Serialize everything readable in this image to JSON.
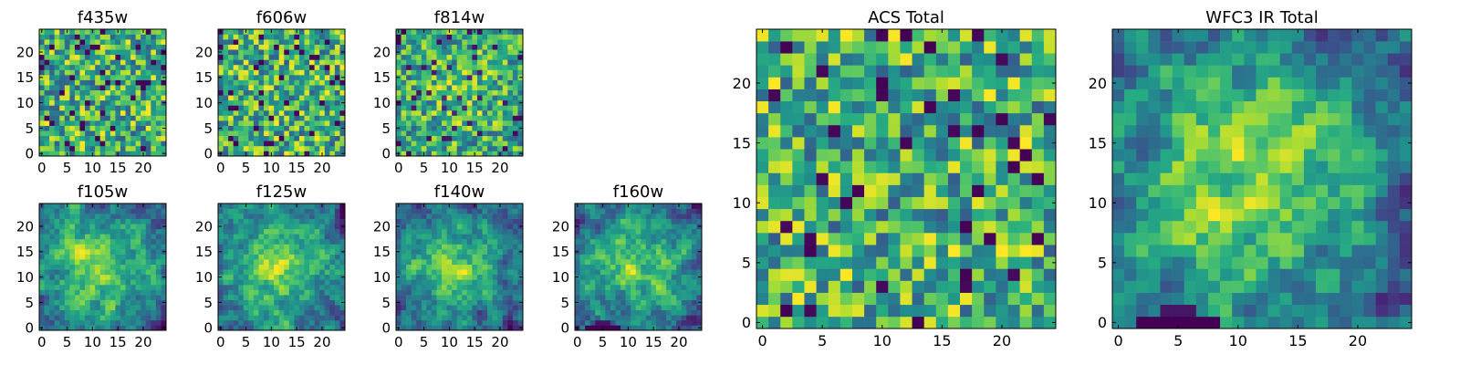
{
  "chart_data": [
    {
      "type": "heatmap",
      "title": "f435w",
      "grid": [
        25,
        25
      ],
      "xlim": [
        -0.5,
        24.5
      ],
      "ylim": [
        -0.5,
        24.5
      ],
      "xticks": [
        0,
        5,
        10,
        15,
        20
      ],
      "yticks": [
        0,
        5,
        10,
        15,
        20
      ],
      "colormap": "viridis",
      "pattern": "noise",
      "seed": 11
    },
    {
      "type": "heatmap",
      "title": "f606w",
      "grid": [
        25,
        25
      ],
      "xlim": [
        -0.5,
        24.5
      ],
      "ylim": [
        -0.5,
        24.5
      ],
      "xticks": [
        0,
        5,
        10,
        15,
        20
      ],
      "yticks": [
        0,
        5,
        10,
        15,
        20
      ],
      "colormap": "viridis",
      "pattern": "noise",
      "seed": 23
    },
    {
      "type": "heatmap",
      "title": "f814w",
      "grid": [
        25,
        25
      ],
      "xlim": [
        -0.5,
        24.5
      ],
      "ylim": [
        -0.5,
        24.5
      ],
      "xticks": [
        0,
        5,
        10,
        15,
        20
      ],
      "yticks": [
        0,
        5,
        10,
        15,
        20
      ],
      "colormap": "viridis",
      "pattern": "noise-bright-center",
      "seed": 37
    },
    {
      "type": "heatmap",
      "title": "f105w",
      "grid": [
        25,
        25
      ],
      "xlim": [
        -0.5,
        24.5
      ],
      "ylim": [
        -0.5,
        24.5
      ],
      "xticks": [
        0,
        5,
        10,
        15,
        20
      ],
      "yticks": [
        0,
        5,
        10,
        15,
        20
      ],
      "colormap": "viridis",
      "pattern": "smooth-blob",
      "seed": 41
    },
    {
      "type": "heatmap",
      "title": "f125w",
      "grid": [
        25,
        25
      ],
      "xlim": [
        -0.5,
        24.5
      ],
      "ylim": [
        -0.5,
        24.5
      ],
      "xticks": [
        0,
        5,
        10,
        15,
        20
      ],
      "yticks": [
        0,
        5,
        10,
        15,
        20
      ],
      "colormap": "viridis",
      "pattern": "smooth-blob",
      "seed": 53
    },
    {
      "type": "heatmap",
      "title": "f140w",
      "grid": [
        25,
        25
      ],
      "xlim": [
        -0.5,
        24.5
      ],
      "ylim": [
        -0.5,
        24.5
      ],
      "xticks": [
        0,
        5,
        10,
        15,
        20
      ],
      "yticks": [
        0,
        5,
        10,
        15,
        20
      ],
      "colormap": "viridis",
      "pattern": "smooth-blob",
      "seed": 67
    },
    {
      "type": "heatmap",
      "title": "f160w",
      "grid": [
        25,
        25
      ],
      "xlim": [
        -0.5,
        24.5
      ],
      "ylim": [
        -0.5,
        24.5
      ],
      "xticks": [
        0,
        5,
        10,
        15,
        20
      ],
      "yticks": [
        0,
        5,
        10,
        15,
        20
      ],
      "colormap": "viridis",
      "pattern": "smooth-blob-dark-bottom",
      "seed": 79
    },
    {
      "type": "heatmap",
      "title": "ACS Total",
      "grid": [
        25,
        25
      ],
      "xlim": [
        -0.5,
        24.5
      ],
      "ylim": [
        -0.5,
        24.5
      ],
      "xticks": [
        0,
        5,
        10,
        15,
        20
      ],
      "yticks": [
        0,
        5,
        10,
        15,
        20
      ],
      "colormap": "viridis",
      "pattern": "noise-bright",
      "seed": 97
    },
    {
      "type": "heatmap",
      "title": "WFC3 IR Total",
      "grid": [
        25,
        25
      ],
      "xlim": [
        -0.5,
        24.5
      ],
      "ylim": [
        -0.5,
        24.5
      ],
      "xticks": [
        0,
        5,
        10,
        15,
        20
      ],
      "yticks": [
        0,
        5,
        10,
        15,
        20
      ],
      "colormap": "viridis",
      "pattern": "smooth-blob-dark-bottom",
      "seed": 113
    }
  ]
}
